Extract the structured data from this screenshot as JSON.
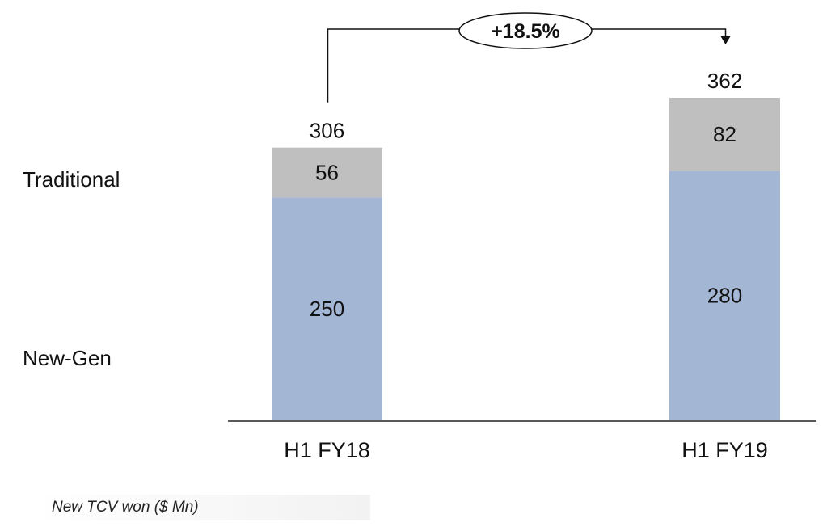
{
  "chart_data": {
    "type": "bar",
    "stacked": true,
    "categories": [
      "H1 FY18",
      "H1 FY19"
    ],
    "series": [
      {
        "name": "New-Gen",
        "values": [
          250,
          280
        ],
        "color": "#a3b6d3"
      },
      {
        "name": "Traditional",
        "values": [
          56,
          82
        ],
        "color": "#bfbfbf"
      }
    ],
    "totals": [
      306,
      362
    ],
    "growth_label": "+18.5%",
    "xlabel": "",
    "ylabel": "",
    "ylim": [
      0,
      362
    ],
    "grid": false,
    "legend": "left-side labels"
  },
  "legend": {
    "traditional": "Traditional",
    "new_gen": "New-Gen"
  },
  "footnote": "New TCV won ($ Mn)"
}
